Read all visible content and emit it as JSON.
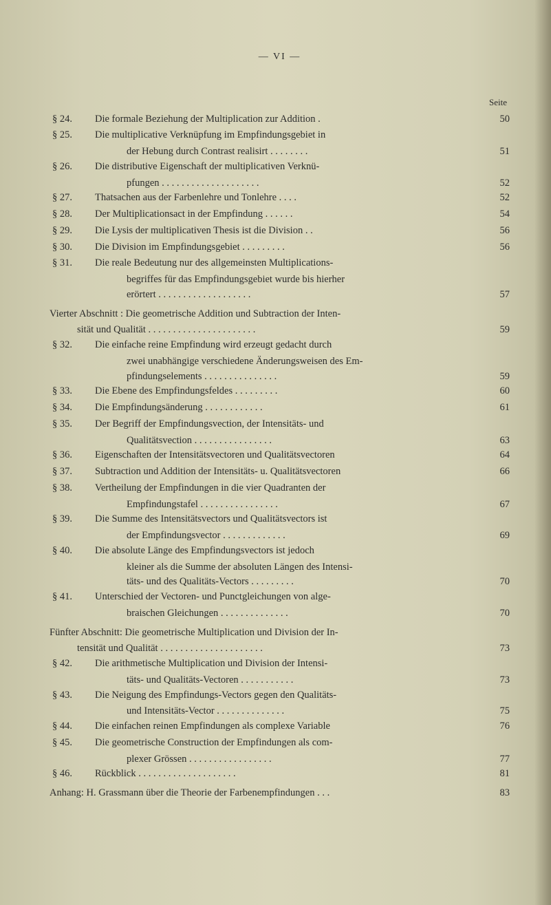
{
  "page_roman": "—   VI   —",
  "seite_label": "Seite",
  "colors": {
    "paper": "#d0cdb3",
    "ink": "#2b2b2b"
  },
  "entries": [
    {
      "num": "§ 24.",
      "line1": "Die formale Beziehung der Multiplication zur Addition   .",
      "page": "50"
    },
    {
      "num": "§ 25.",
      "line1": "Die multiplicative Verknüpfung im Empfindungsgebiet in",
      "cont": "der Hebung durch Contrast realisirt . . . . . . . .",
      "page": "51"
    },
    {
      "num": "§ 26.",
      "line1": "Die distributive Eigenschaft der multiplicativen Verknü-",
      "cont": "pfungen . . . . . . . . . . . . . . . . . . . .",
      "page": "52"
    },
    {
      "num": "§ 27.",
      "line1": "Thatsachen aus der Farbenlehre und Tonlehre . . . .",
      "page": "52"
    },
    {
      "num": "§ 28.",
      "line1": "Der Multiplicationsact in der Empfindung . . . . . .",
      "page": "54"
    },
    {
      "num": "§ 29.",
      "line1": "Die Lysis der multiplicativen Thesis ist die Division . .",
      "page": "56"
    },
    {
      "num": "§ 30.",
      "line1": "Die Division im Empfindungsgebiet . . . . . . . . .",
      "page": "56"
    },
    {
      "num": "§ 31.",
      "line1": "Die reale Bedeutung nur des allgemeinsten Multiplications-",
      "cont": "begriffes für das Empfindungsgebiet wurde bis hierher",
      "cont2": "erörtert  . . . . . . . . . . . . . . . . . . .",
      "page": "57"
    }
  ],
  "section_vierter": {
    "line1": "Vierter Abschnitt :  Die geometrische Addition und Subtraction der Inten-",
    "line2": "sität und Qualität  . . . . . . . . . . . . . . . . . . . . . .",
    "page": "59"
  },
  "entries_v": [
    {
      "num": "§ 32.",
      "line1": "Die einfache reine Empfindung wird erzeugt gedacht durch",
      "cont": "zwei unabhängige verschiedene Änderungsweisen des Em-",
      "cont2": "pfindungselements  . . . . . . . . . . . . . . .",
      "page": "59"
    },
    {
      "num": "§ 33.",
      "line1": "Die Ebene des Empfindungsfeldes  . . . . . . . . .",
      "page": "60"
    },
    {
      "num": "§ 34.",
      "line1": "Die Empfindungsänderung   . . . . . . . . . . . .",
      "page": "61"
    },
    {
      "num": "§ 35.",
      "line1": "Der Begriff der Empfindungsvection,  der Intensitäts- und",
      "cont": "Qualitätsvection  . . . . . . . . . . . . . . . .",
      "page": "63"
    },
    {
      "num": "§ 36.",
      "line1": "Eigenschaften der Intensitätsvectoren und Qualitätsvectoren",
      "page": "64"
    },
    {
      "num": "§ 37.",
      "line1": "Subtraction und Addition der Intensitäts- u. Qualitätsvectoren",
      "page": "66"
    },
    {
      "num": "§ 38.",
      "line1": "Vertheilung der Empfindungen in die vier Quadranten der",
      "cont": "Empfindungstafel . . . . . . . . . . . . . . . .",
      "page": "67"
    },
    {
      "num": "§ 39.",
      "line1": "Die Summe des Intensitätsvectors und Qualitätsvectors ist",
      "cont": "der Empfindungsvector   . . . . . . . . . . . . .",
      "page": "69"
    },
    {
      "num": "§ 40.",
      "line1": "Die absolute Länge des Empfindungsvectors ist jedoch",
      "cont": "kleiner als die Summe der absoluten Längen des Intensi-",
      "cont2": "täts- und des Qualitäts-Vectors   . . . . . . . . .",
      "page": "70"
    },
    {
      "num": "§ 41.",
      "line1": "Unterschied der Vectoren- und Punctgleichungen von alge-",
      "cont": "braischen Gleichungen  . . . . . . . . . . . . . .",
      "page": "70"
    }
  ],
  "section_fuenfter": {
    "line1": "Fünfter Abschnitt:  Die geometrische Multiplication und Division der In-",
    "line2": "tensität und Qualität   . . . . . . . . . . . . . . . . . . . . .",
    "page": "73"
  },
  "entries_f": [
    {
      "num": "§ 42.",
      "line1": "Die arithmetische Multiplication und Division der Intensi-",
      "cont": "täts- und Qualitäts-Vectoren  . . . . . . . . . . .",
      "page": "73"
    },
    {
      "num": "§ 43.",
      "line1": "Die Neigung des Empfindungs-Vectors gegen den Qualitäts-",
      "cont": "und Intensitäts-Vector . . . . . . . . . . . . . .",
      "page": "75"
    },
    {
      "num": "§ 44.",
      "line1": "Die einfachen reinen Empfindungen als complexe Variable",
      "page": "76"
    },
    {
      "num": "§ 45.",
      "line1": "Die geometrische Construction der Empfindungen als com-",
      "cont": "plexer Grössen  . . . . . . . . . . . . . . . . .",
      "page": "77"
    },
    {
      "num": "§ 46.",
      "line1": "Rückblick . . . . . . . . . . . . . . . . . . . .",
      "page": "81"
    }
  ],
  "anhang": {
    "text": "Anhang: H. Grassmann über die Theorie der Farbenempfindungen . . .",
    "page": "83"
  }
}
